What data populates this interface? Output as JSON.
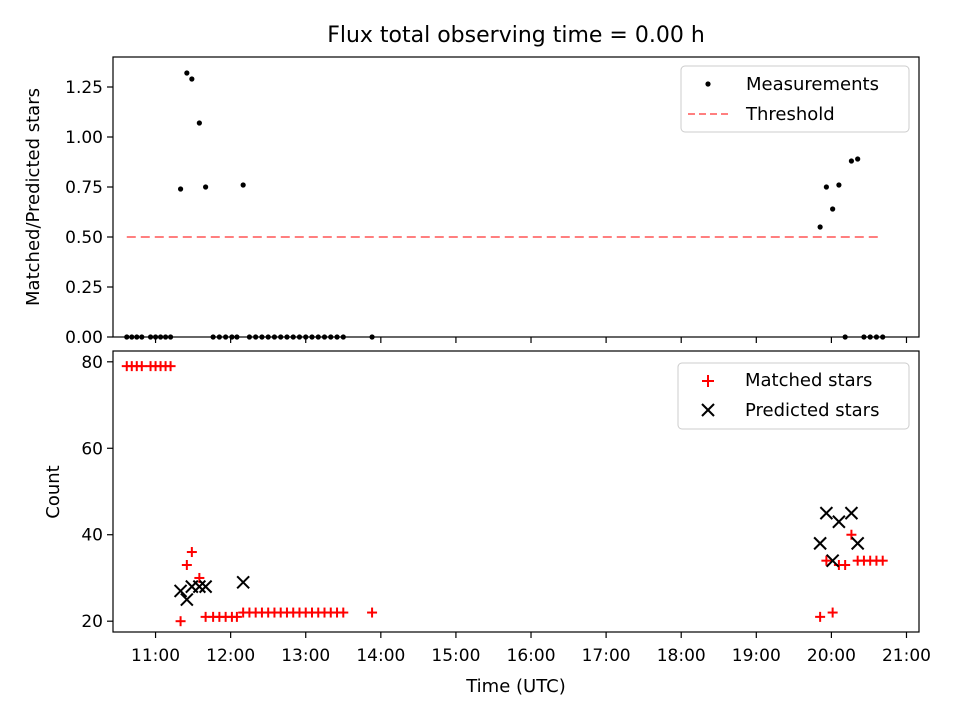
{
  "chart_data": [
    {
      "type": "scatter",
      "title": "Flux total observing time = 0.00 h",
      "xlabel": "",
      "ylabel": "Matched/Predicted stars",
      "xlim": [
        "10:26",
        "21:10"
      ],
      "ylim": [
        0,
        1.4
      ],
      "yticks": [
        0,
        0.25,
        0.5,
        0.75,
        1.0,
        1.25
      ],
      "ytick_labels": [
        "0.00",
        "0.25",
        "0.50",
        "0.75",
        "1.00",
        "1.25"
      ],
      "xticks": [
        "11:00",
        "12:00",
        "13:00",
        "14:00",
        "15:00",
        "16:00",
        "17:00",
        "18:00",
        "19:00",
        "20:00",
        "21:00"
      ],
      "show_x_tick_labels": false,
      "legend": "top-right",
      "series": [
        {
          "name": "Measurements",
          "kind": "points",
          "color": "#000000",
          "x": [
            "10:37",
            "10:41",
            "10:45",
            "10:49",
            "10:56",
            "11:00",
            "11:04",
            "11:08",
            "11:12",
            "11:20",
            "11:25",
            "11:29",
            "11:35",
            "11:40",
            "11:46",
            "11:51",
            "11:56",
            "12:01",
            "12:05",
            "12:10",
            "12:15",
            "12:20",
            "12:25",
            "12:30",
            "12:35",
            "12:40",
            "12:45",
            "12:50",
            "12:55",
            "13:00",
            "13:05",
            "13:10",
            "13:15",
            "13:20",
            "13:25",
            "13:30",
            "13:53",
            "19:51",
            "19:56",
            "20:01",
            "20:06",
            "20:11",
            "20:16",
            "20:21",
            "20:26",
            "20:31",
            "20:36",
            "20:41"
          ],
          "y": [
            0,
            0,
            0,
            0,
            0,
            0,
            0,
            0,
            0,
            0.74,
            1.32,
            1.29,
            1.07,
            0.75,
            0,
            0,
            0,
            0,
            0,
            0.76,
            0,
            0,
            0,
            0,
            0,
            0,
            0,
            0,
            0,
            0,
            0,
            0,
            0,
            0,
            0,
            0,
            0,
            0.55,
            0.75,
            0.64,
            0.76,
            0,
            0.88,
            0.89,
            0,
            0,
            0,
            0
          ]
        },
        {
          "name": "Threshold",
          "kind": "line",
          "style": "dashed",
          "color": "#ff7f7f",
          "x": [
            "10:37",
            "20:41"
          ],
          "y": [
            0.5,
            0.5
          ]
        }
      ]
    },
    {
      "type": "scatter",
      "title": "",
      "xlabel": "Time (UTC)",
      "ylabel": "Count",
      "xlim": [
        "10:26",
        "21:10"
      ],
      "ylim": [
        17.5,
        82.5
      ],
      "yticks": [
        20,
        40,
        60,
        80
      ],
      "ytick_labels": [
        "20",
        "40",
        "60",
        "80"
      ],
      "xticks": [
        "11:00",
        "12:00",
        "13:00",
        "14:00",
        "15:00",
        "16:00",
        "17:00",
        "18:00",
        "19:00",
        "20:00",
        "21:00"
      ],
      "show_x_tick_labels": true,
      "legend": "top-right",
      "series": [
        {
          "name": "Matched stars",
          "kind": "plus",
          "color": "#ff0000",
          "x": [
            "10:37",
            "10:41",
            "10:45",
            "10:49",
            "10:56",
            "11:00",
            "11:04",
            "11:08",
            "11:12",
            "11:20",
            "11:25",
            "11:29",
            "11:35",
            "11:40",
            "11:46",
            "11:51",
            "11:56",
            "12:01",
            "12:05",
            "12:10",
            "12:15",
            "12:20",
            "12:25",
            "12:30",
            "12:35",
            "12:40",
            "12:45",
            "12:50",
            "12:55",
            "13:00",
            "13:05",
            "13:10",
            "13:15",
            "13:20",
            "13:25",
            "13:30",
            "13:53",
            "19:51",
            "19:56",
            "20:01",
            "20:06",
            "20:11",
            "20:16",
            "20:21",
            "20:26",
            "20:31",
            "20:36",
            "20:41"
          ],
          "y": [
            79,
            79,
            79,
            79,
            79,
            79,
            79,
            79,
            79,
            20,
            33,
            36,
            30,
            21,
            21,
            21,
            21,
            21,
            21,
            22,
            22,
            22,
            22,
            22,
            22,
            22,
            22,
            22,
            22,
            22,
            22,
            22,
            22,
            22,
            22,
            22,
            22,
            21,
            34,
            22,
            33,
            33,
            40,
            34,
            34,
            34,
            34,
            34
          ]
        },
        {
          "name": "Predicted stars",
          "kind": "x",
          "color": "#000000",
          "x": [
            "11:20",
            "11:25",
            "11:29",
            "11:35",
            "11:40",
            "12:10",
            "19:51",
            "19:56",
            "20:01",
            "20:06",
            "20:16",
            "20:21"
          ],
          "y": [
            27,
            25,
            28,
            28,
            28,
            29,
            38,
            45,
            34,
            43,
            45,
            38
          ]
        }
      ]
    }
  ]
}
